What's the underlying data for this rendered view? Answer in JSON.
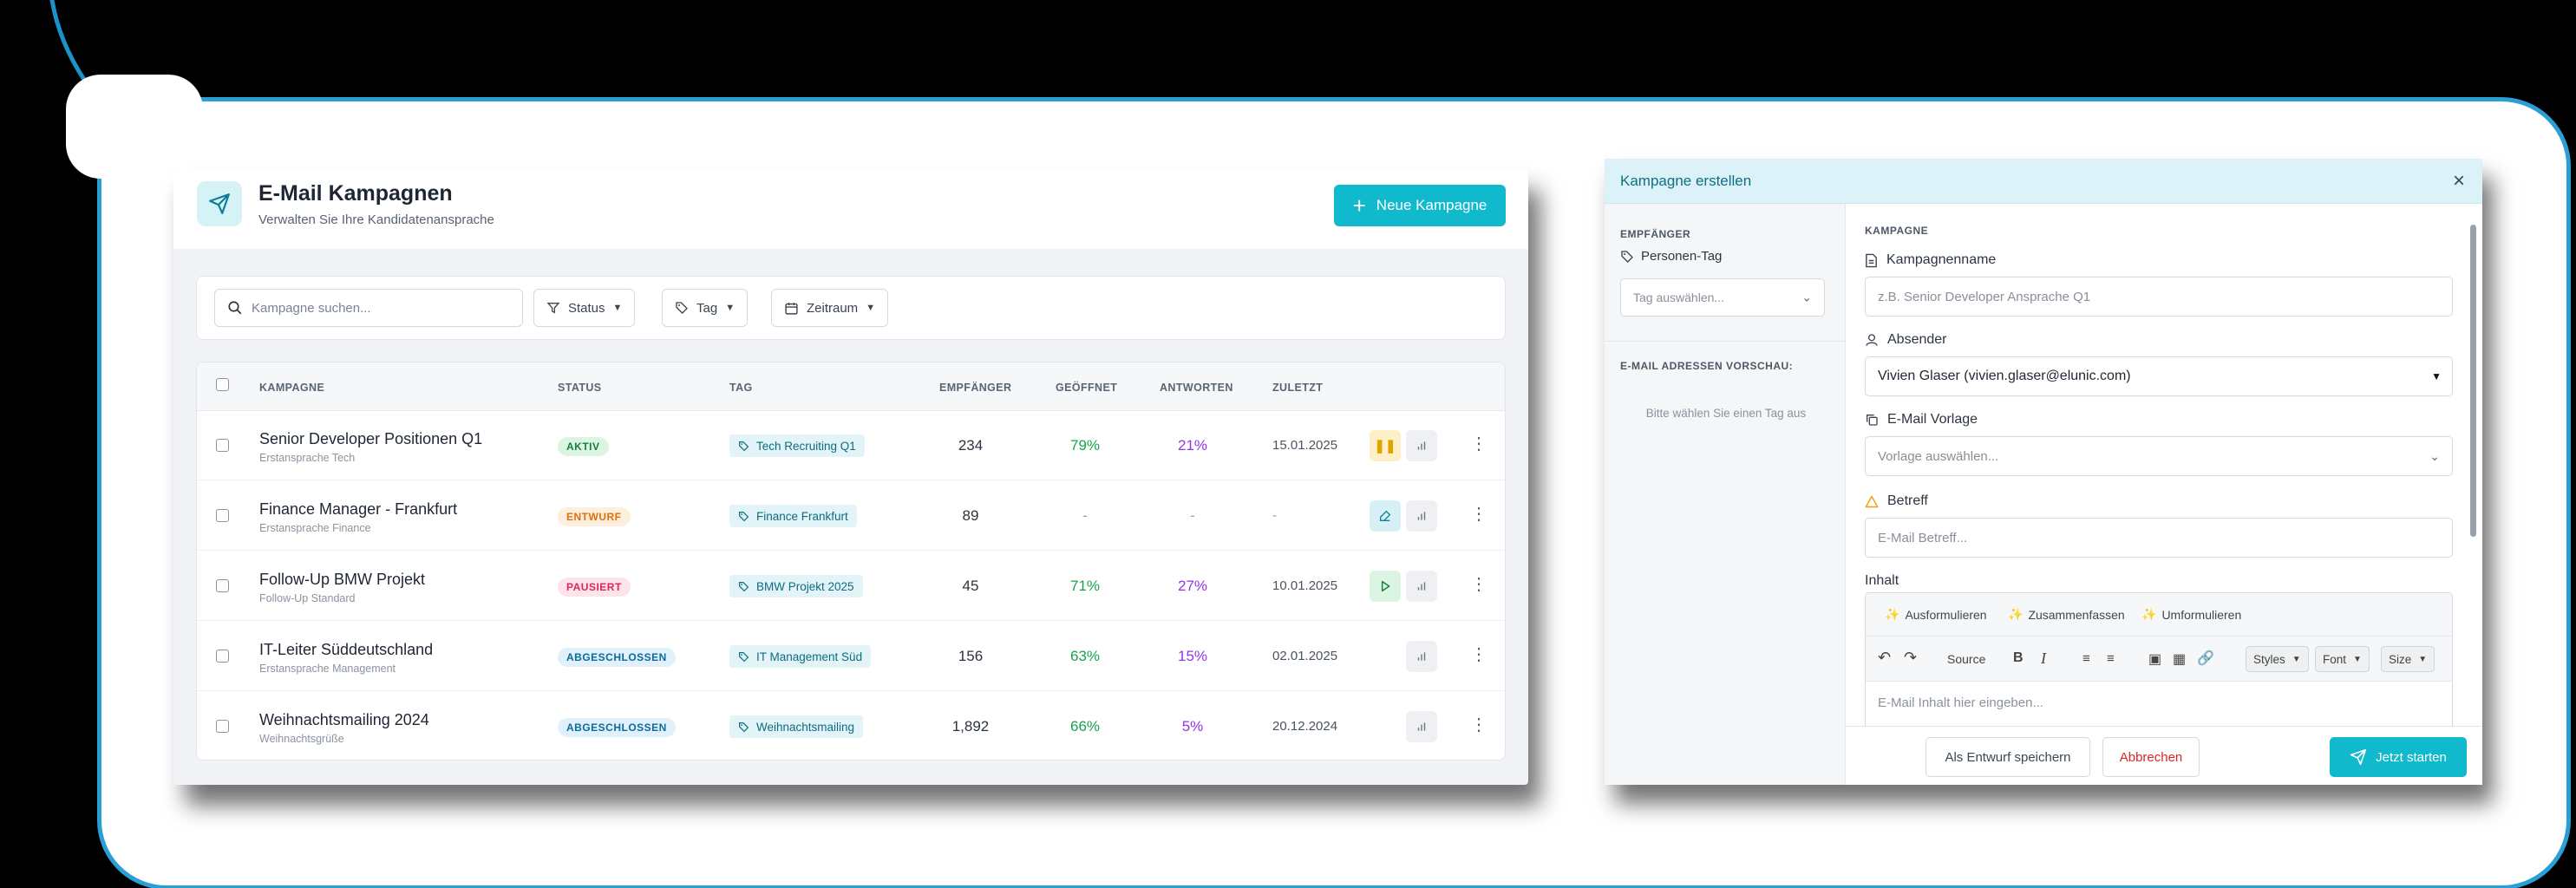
{
  "campaigns_page": {
    "title": "E-Mail Kampagnen",
    "subtitle": "Verwalten Sie Ihre Kandidatenansprache",
    "new_button": "Neue Kampagne",
    "search_placeholder": "Kampagne suchen...",
    "filters": [
      "Status",
      "Tag",
      "Zeitraum"
    ],
    "columns": [
      "KAMPAGNE",
      "STATUS",
      "TAG",
      "EMPFÄNGER",
      "GEÖFFNET",
      "ANTWORTEN",
      "ZULETZT"
    ],
    "rows": [
      {
        "name": "Senior Developer Positionen Q1",
        "sub": "Erstansprache Tech",
        "status": "AKTIV",
        "tag": "Tech Recruiting Q1",
        "recipients": "234",
        "opened": "79%",
        "replies": "21%",
        "last": "15.01.2025",
        "action": "pause"
      },
      {
        "name": "Finance Manager - Frankfurt",
        "sub": "Erstansprache Finance",
        "status": "ENTWURF",
        "tag": "Finance Frankfurt",
        "recipients": "89",
        "opened": "-",
        "replies": "-",
        "last": "-",
        "action": "edit"
      },
      {
        "name": "Follow-Up BMW Projekt",
        "sub": "Follow-Up Standard",
        "status": "PAUSIERT",
        "tag": "BMW Projekt 2025",
        "recipients": "45",
        "opened": "71%",
        "replies": "27%",
        "last": "10.01.2025",
        "action": "play"
      },
      {
        "name": "IT-Leiter Süddeutschland",
        "sub": "Erstansprache Management",
        "status": "ABGESCHLOSSEN",
        "tag": "IT Management Süd",
        "recipients": "156",
        "opened": "63%",
        "replies": "15%",
        "last": "02.01.2025",
        "action": "none"
      },
      {
        "name": "Weihnachtsmailing 2024",
        "sub": "Weihnachtsgrüße",
        "status": "ABGESCHLOSSEN",
        "tag": "Weihnachtsmailing",
        "recipients": "1,892",
        "opened": "66%",
        "replies": "5%",
        "last": "20.12.2024",
        "action": "none"
      }
    ],
    "status_colors": {
      "AKTIV": {
        "bg": "#dcf5e3",
        "fg": "#15803d"
      },
      "ENTWURF": {
        "bg": "#fdeede",
        "fg": "#e0700f"
      },
      "PAUSIERT": {
        "bg": "#fde3ea",
        "fg": "#db2759"
      },
      "ABGESCHLOSSEN": {
        "bg": "#e1f1fb",
        "fg": "#0c6a9a"
      }
    }
  },
  "modal": {
    "title": "Kampagne erstellen",
    "close": "×",
    "side": {
      "recipients_label": "EMPFÄNGER",
      "person_tag_label": "Personen-Tag",
      "tag_placeholder": "Tag auswählen...",
      "preview_label": "E-MAIL ADRESSEN VORSCHAU:",
      "preview_hint": "Bitte wählen Sie einen Tag aus"
    },
    "section_label": "KAMPAGNE",
    "campaign_name_label": "Kampagnenname",
    "campaign_name_placeholder": "z.B. Senior Developer Ansprache Q1",
    "sender_label": "Absender",
    "sender_value": "Vivien Glaser (vivien.glaser@elunic.com)",
    "template_label": "E-Mail Vorlage",
    "template_placeholder": "Vorlage auswählen...",
    "subject_label": "Betreff",
    "subject_placeholder": "E-Mail Betreff...",
    "content_label": "Inhalt",
    "ai_actions": [
      "Ausformulieren",
      "Zusammenfassen",
      "Umformulieren"
    ],
    "source_label": "Source",
    "dropdowns": [
      "Styles",
      "Font",
      "Size"
    ],
    "editor_placeholder": "E-Mail Inhalt hier eingeben...",
    "save_draft": "Als Entwurf speichern",
    "cancel": "Abbrechen",
    "start": "Jetzt starten"
  },
  "colors": {
    "accent": "#11b9cc",
    "frame": "#2a9fd6"
  }
}
